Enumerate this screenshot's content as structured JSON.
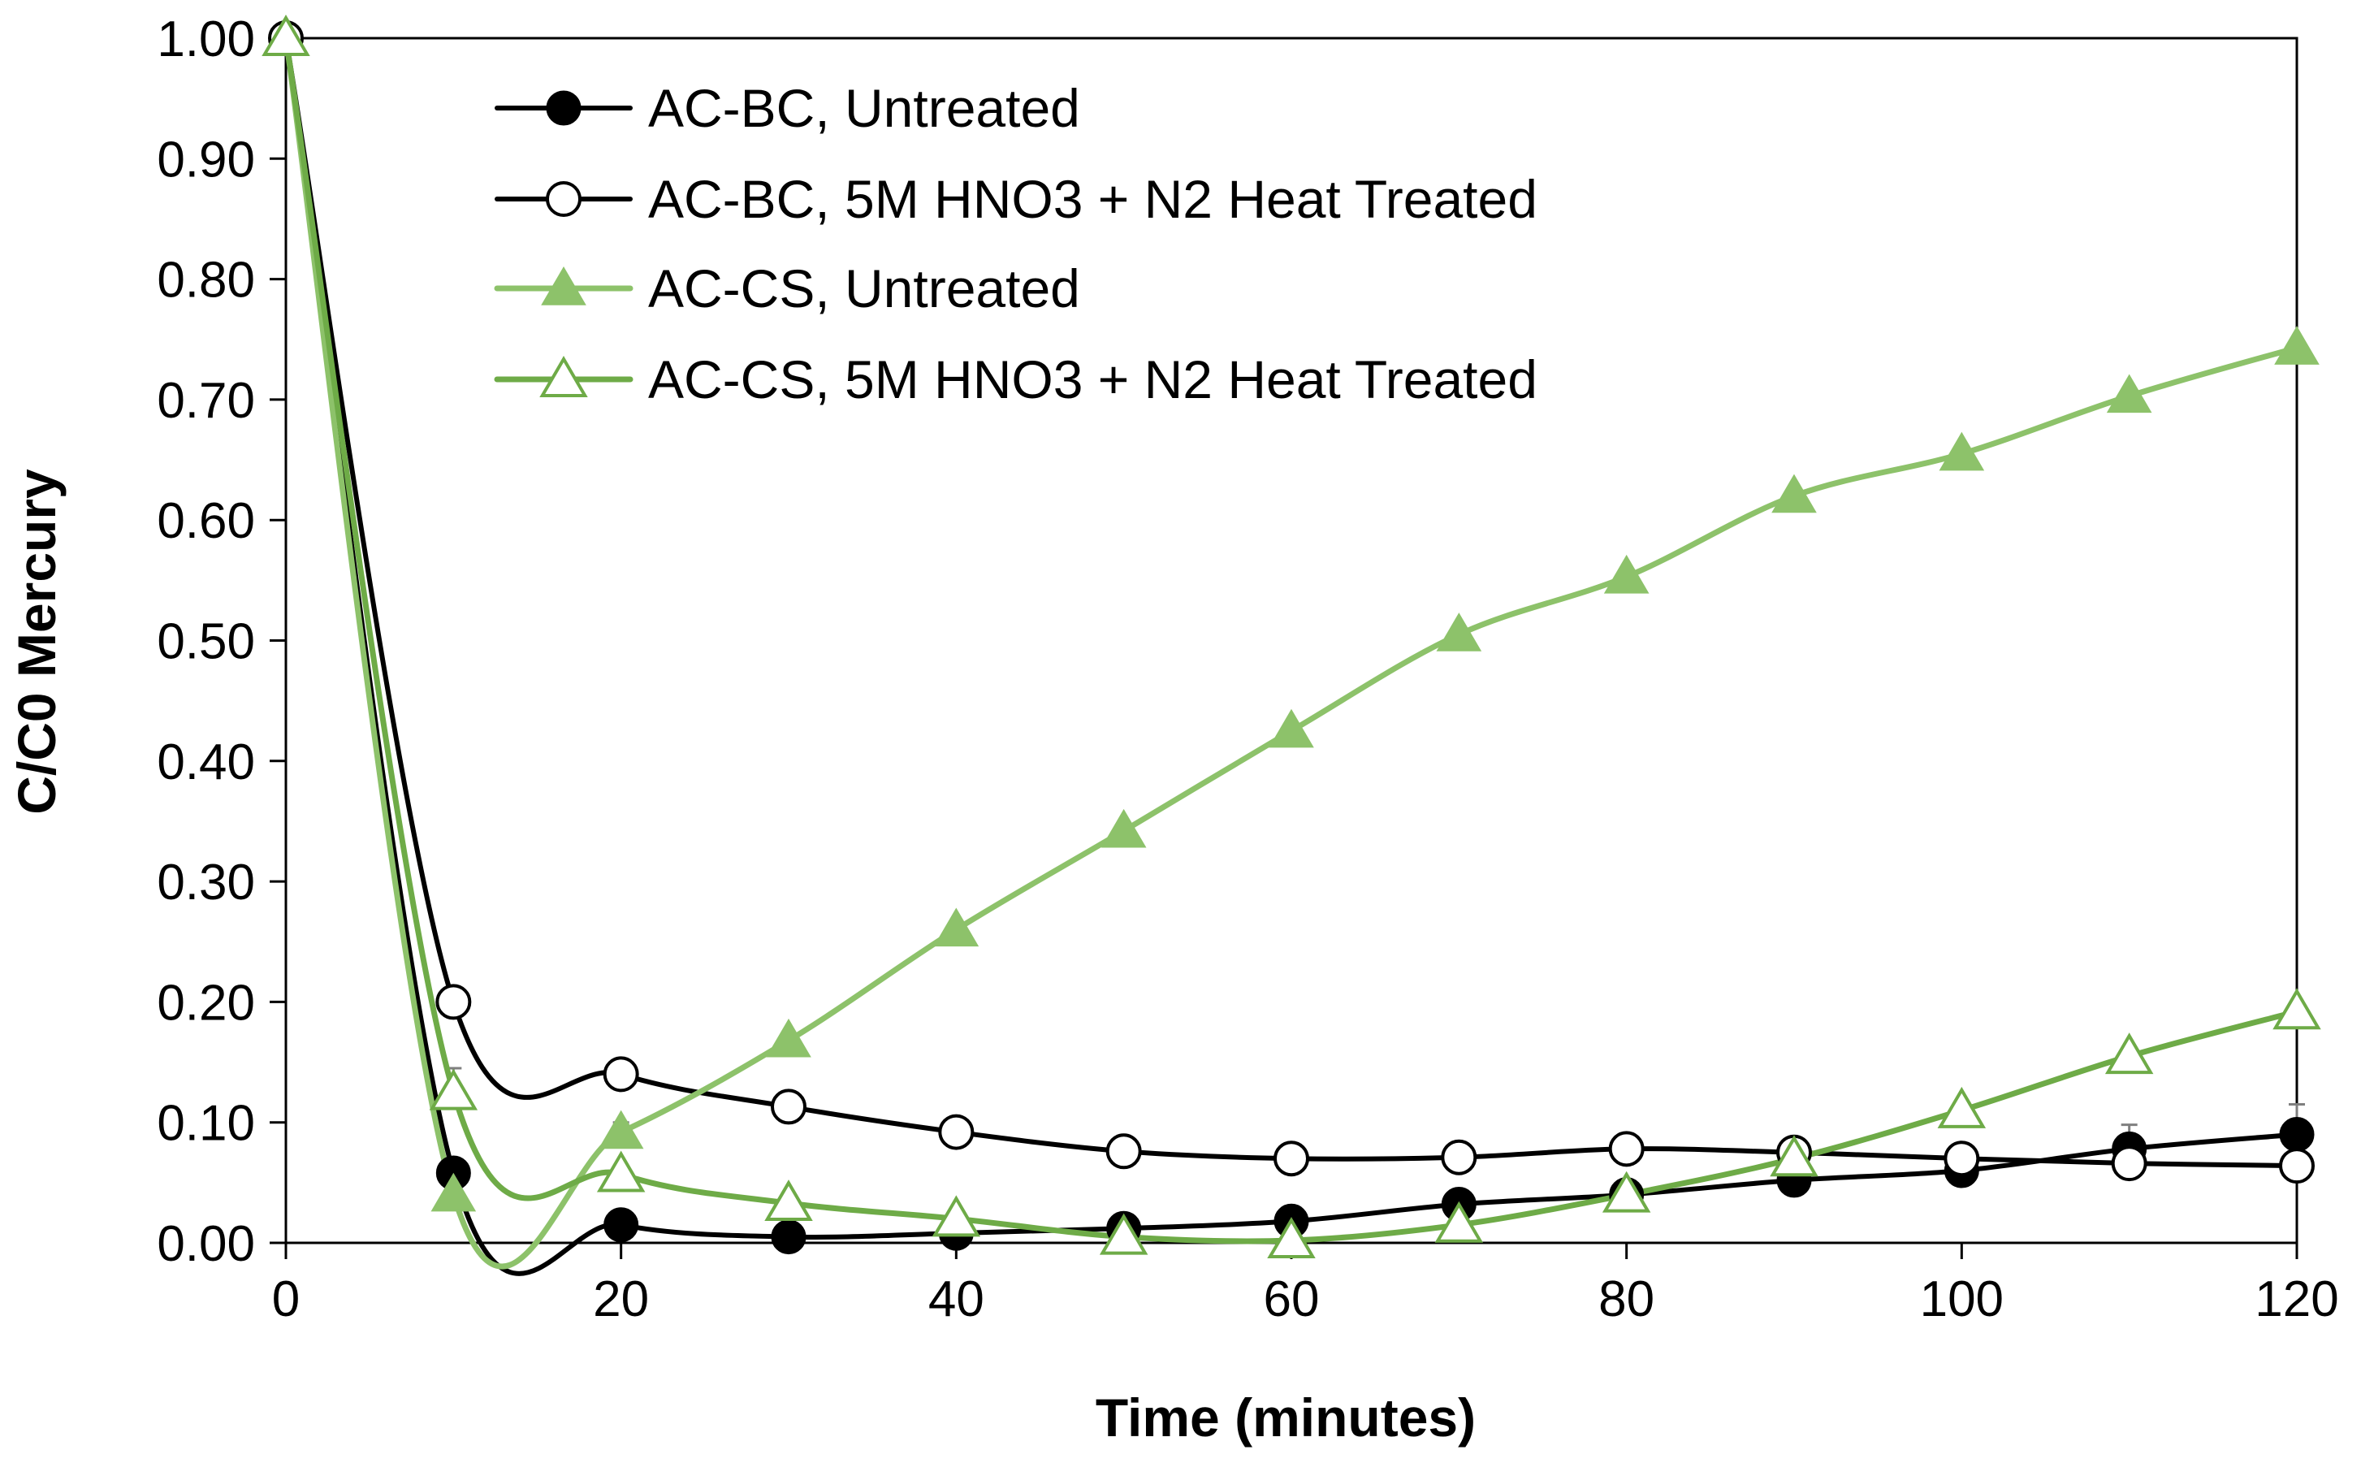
{
  "chart_data": {
    "type": "line",
    "title": "",
    "xlabel": "Time (minutes)",
    "ylabel": "C/C0 Mercury",
    "xlim": [
      0,
      120
    ],
    "ylim": [
      0,
      1.0
    ],
    "x_ticks": [
      0,
      20,
      40,
      60,
      80,
      100,
      120
    ],
    "x_tick_labels": [
      "0",
      "20",
      "40",
      "60",
      "80",
      "100",
      "120"
    ],
    "y_ticks": [
      0,
      0.1,
      0.2,
      0.3,
      0.4,
      0.5,
      0.6,
      0.7,
      0.8,
      0.9,
      1.0
    ],
    "y_tick_labels": [
      "0.00",
      "0.10",
      "0.20",
      "0.30",
      "0.40",
      "0.50",
      "0.60",
      "0.70",
      "0.80",
      "0.90",
      "1.00"
    ],
    "grid": false,
    "legend_position": "top-center",
    "colors": {
      "black": "#000000",
      "green_light": "#8DC26A",
      "green_dark": "#6EAB47",
      "error_bar": "#7F7F7F"
    },
    "series": [
      {
        "name": "AC-BC, Untreated",
        "marker": "circle-filled",
        "color": "#000000",
        "x": [
          0,
          10,
          20,
          30,
          40,
          50,
          60,
          70,
          80,
          90,
          100,
          110,
          120
        ],
        "y": [
          1.0,
          0.058,
          0.015,
          0.005,
          0.008,
          0.012,
          0.018,
          0.032,
          0.04,
          0.052,
          0.06,
          0.078,
          0.09
        ],
        "error": [
          0,
          0,
          0,
          0,
          0,
          0,
          0,
          0,
          0,
          0.01,
          0.015,
          0.02,
          0.025
        ]
      },
      {
        "name": "AC-BC, 5M HNO3 + N2 Heat Treated",
        "marker": "circle-open",
        "color": "#000000",
        "x": [
          0,
          10,
          20,
          30,
          40,
          50,
          60,
          70,
          80,
          90,
          100,
          110,
          120
        ],
        "y": [
          1.0,
          0.2,
          0.14,
          0.113,
          0.092,
          0.076,
          0.07,
          0.071,
          0.078,
          0.075,
          0.07,
          0.066,
          0.064
        ],
        "error": [
          0,
          0,
          0,
          0,
          0,
          0,
          0,
          0,
          0,
          0,
          0,
          0,
          0
        ]
      },
      {
        "name": "AC-CS, Untreated",
        "marker": "triangle-filled",
        "color": "#8DC26A",
        "x": [
          0,
          10,
          20,
          30,
          40,
          50,
          60,
          70,
          80,
          90,
          100,
          110,
          120
        ],
        "y": [
          1.0,
          0.04,
          0.092,
          0.168,
          0.26,
          0.342,
          0.425,
          0.505,
          0.553,
          0.62,
          0.655,
          0.703,
          0.743
        ],
        "error": [
          0,
          0,
          0.008,
          0,
          0.005,
          0,
          0.005,
          0.005,
          0,
          0.005,
          0.005,
          0.005,
          0.005
        ]
      },
      {
        "name": "AC-CS, 5M HNO3 + N2 Heat Treated",
        "marker": "triangle-open",
        "color": "#6EAB47",
        "x": [
          0,
          10,
          20,
          30,
          40,
          50,
          60,
          70,
          80,
          90,
          100,
          110,
          120
        ],
        "y": [
          1.0,
          0.125,
          0.057,
          0.033,
          0.02,
          0.005,
          0.002,
          0.015,
          0.04,
          0.07,
          0.11,
          0.155,
          0.192
        ],
        "error": [
          0,
          0.02,
          0,
          0,
          0,
          0,
          0,
          0,
          0,
          0,
          0,
          0,
          0
        ]
      }
    ]
  }
}
